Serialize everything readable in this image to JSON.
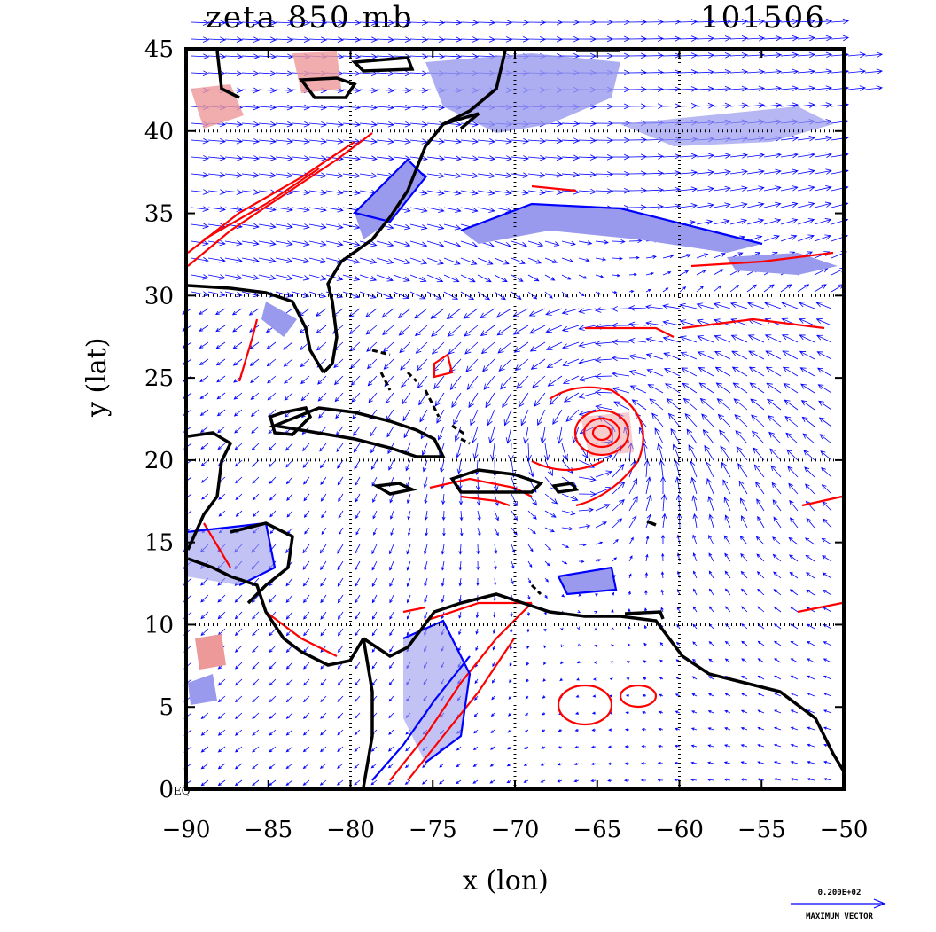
{
  "title": {
    "left": "zeta 850 mb",
    "right": "101506"
  },
  "axes": {
    "xlabel": "x (lon)",
    "ylabel": "y (lat)",
    "x_ticks": [
      "−90",
      "−85",
      "−80",
      "−75",
      "−70",
      "−65",
      "−60",
      "−55",
      "−50"
    ],
    "y_ticks": [
      "0",
      "5",
      "10",
      "15",
      "20",
      "25",
      "30",
      "35",
      "40",
      "45"
    ],
    "eq_label": "EQ"
  },
  "grid": {
    "lon_lines": [
      -80,
      -70,
      -60
    ],
    "lat_lines": [
      10,
      20,
      30,
      40
    ]
  },
  "legend": {
    "value": "0.200E+02",
    "label": "MAXIMUM VECTOR"
  },
  "colors": {
    "positive_contour": "#ff0000",
    "negative_contour": "#0000ff",
    "negative_fill": "#9999ee",
    "positive_fill": "#ee9999",
    "vector": "#0000ff",
    "coast": "#000000"
  },
  "features": {
    "cyclone_center": {
      "lon": -65,
      "lat": 21.5
    }
  }
}
